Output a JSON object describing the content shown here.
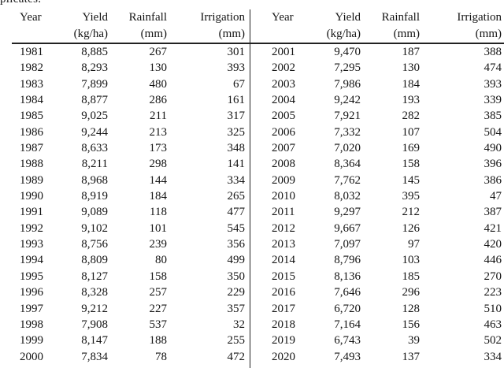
{
  "caption": {
    "partial_text": "plicates."
  },
  "table": {
    "headers": {
      "year": "Year",
      "yield": "Yield",
      "yield_unit": "(kg/ha)",
      "rainfall": "Rainfall",
      "rainfall_unit": "(mm)",
      "irrigation": "Irrigation",
      "irrigation_unit": "(mm)"
    },
    "left_rows": [
      [
        "1981",
        "8,885",
        "267",
        "301"
      ],
      [
        "1982",
        "8,293",
        "130",
        "393"
      ],
      [
        "1983",
        "7,899",
        "480",
        "67"
      ],
      [
        "1984",
        "8,877",
        "286",
        "161"
      ],
      [
        "1985",
        "9,025",
        "211",
        "317"
      ],
      [
        "1986",
        "9,244",
        "213",
        "325"
      ],
      [
        "1987",
        "8,633",
        "173",
        "348"
      ],
      [
        "1988",
        "8,211",
        "298",
        "141"
      ],
      [
        "1989",
        "8,968",
        "144",
        "334"
      ],
      [
        "1990",
        "8,919",
        "184",
        "265"
      ],
      [
        "1991",
        "9,089",
        "118",
        "477"
      ],
      [
        "1992",
        "9,102",
        "101",
        "545"
      ],
      [
        "1993",
        "8,756",
        "239",
        "356"
      ],
      [
        "1994",
        "8,809",
        "80",
        "499"
      ],
      [
        "1995",
        "8,127",
        "158",
        "350"
      ],
      [
        "1996",
        "8,328",
        "257",
        "229"
      ],
      [
        "1997",
        "9,212",
        "227",
        "357"
      ],
      [
        "1998",
        "7,908",
        "537",
        "32"
      ],
      [
        "1999",
        "8,147",
        "188",
        "255"
      ],
      [
        "2000",
        "7,834",
        "78",
        "472"
      ]
    ],
    "right_rows": [
      [
        "2001",
        "9,470",
        "187",
        "388"
      ],
      [
        "2002",
        "7,295",
        "130",
        "474"
      ],
      [
        "2003",
        "7,986",
        "184",
        "393"
      ],
      [
        "2004",
        "9,242",
        "193",
        "339"
      ],
      [
        "2005",
        "7,921",
        "282",
        "385"
      ],
      [
        "2006",
        "7,332",
        "107",
        "504"
      ],
      [
        "2007",
        "7,020",
        "169",
        "490"
      ],
      [
        "2008",
        "8,364",
        "158",
        "396"
      ],
      [
        "2009",
        "7,762",
        "145",
        "386"
      ],
      [
        "2010",
        "8,032",
        "395",
        "47"
      ],
      [
        "2011",
        "9,297",
        "212",
        "387"
      ],
      [
        "2012",
        "9,667",
        "126",
        "421"
      ],
      [
        "2013",
        "7,097",
        "97",
        "420"
      ],
      [
        "2014",
        "8,796",
        "103",
        "446"
      ],
      [
        "2015",
        "8,136",
        "185",
        "270"
      ],
      [
        "2016",
        "7,646",
        "296",
        "223"
      ],
      [
        "2017",
        "6,720",
        "128",
        "510"
      ],
      [
        "2018",
        "7,164",
        "156",
        "463"
      ],
      [
        "2019",
        "6,743",
        "39",
        "502"
      ],
      [
        "2020",
        "7,493",
        "137",
        "334"
      ]
    ]
  }
}
